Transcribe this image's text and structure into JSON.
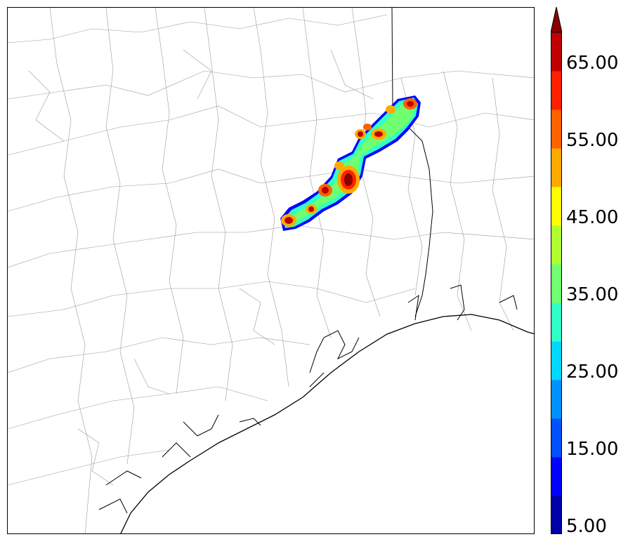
{
  "map": {
    "title": "",
    "region": "Southeast Texas / Gulf Coast",
    "features": [
      "county-boundaries",
      "state-boundary",
      "coastline",
      "radar-reflectivity-swath"
    ]
  },
  "colorbar": {
    "labels": [
      "65.00",
      "55.00",
      "45.00",
      "35.00",
      "25.00",
      "15.00",
      "5.00"
    ],
    "extend": "max",
    "colors": [
      "#0000a8",
      "#0000ff",
      "#0050ff",
      "#0090ff",
      "#00d8ff",
      "#30ffc8",
      "#70ff70",
      "#b0ff30",
      "#ffff00",
      "#ffaa00",
      "#ff6000",
      "#ff2000",
      "#c00000",
      "#880000"
    ]
  }
}
